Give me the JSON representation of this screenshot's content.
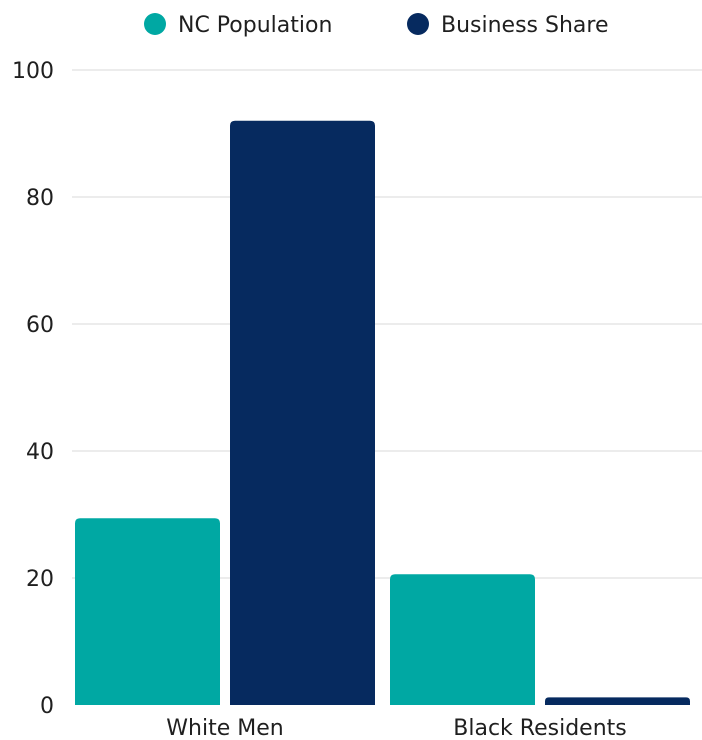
{
  "chart_data": {
    "type": "bar",
    "categories": [
      "White Men",
      "Black Residents"
    ],
    "series": [
      {
        "name": "NC Population",
        "color": "#00a8a3",
        "values": [
          29.4,
          20.6
        ]
      },
      {
        "name": "Business Share",
        "color": "#062a5f",
        "values": [
          92,
          1.2
        ]
      }
    ],
    "ylim": [
      0,
      100
    ],
    "yticks": [
      0,
      20,
      40,
      60,
      80,
      100
    ],
    "grid": true,
    "legend_position": "top-center"
  }
}
